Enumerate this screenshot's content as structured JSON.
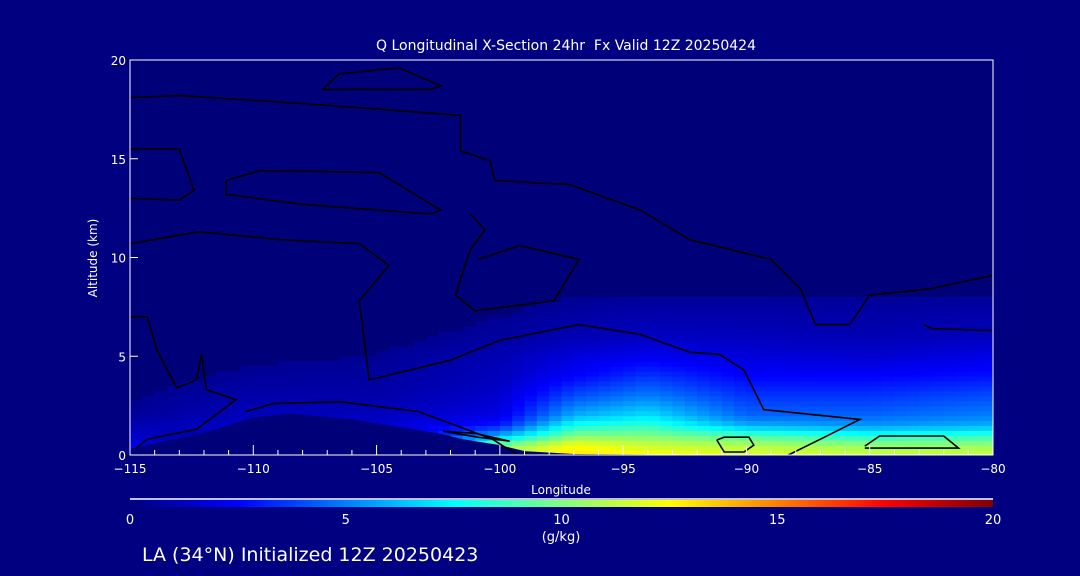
{
  "chart_data": {
    "type": "heatmap",
    "title": "Q Longitudinal X-Section 24hr  Fx Valid 12Z 20250424",
    "xlabel": "Longitude",
    "ylabel": "Altitude (km)",
    "xlim": [
      -115,
      -80
    ],
    "ylim": [
      0,
      20
    ],
    "xticks": [
      -115,
      -110,
      -105,
      -100,
      -95,
      -90,
      -85,
      -80
    ],
    "xtick_labels": [
      "−115",
      "−110",
      "−105",
      "−100",
      "−95",
      "−90",
      "−85",
      "−80"
    ],
    "yticks": [
      0,
      5,
      10,
      15,
      20
    ],
    "ytick_labels": [
      "0",
      "5",
      "10",
      "15",
      "20"
    ],
    "colorbar": {
      "label": "(g/kg)",
      "range": [
        0,
        20
      ],
      "ticks": [
        0,
        5,
        10,
        15,
        20
      ],
      "tick_labels": [
        "0",
        "5",
        "10",
        "15",
        "20"
      ],
      "stops": [
        [
          0,
          "#000080"
        ],
        [
          2.5,
          "#0000ff"
        ],
        [
          5,
          "#0080ff"
        ],
        [
          7.5,
          "#00ffff"
        ],
        [
          10,
          "#80ff80"
        ],
        [
          12.5,
          "#ffff00"
        ],
        [
          15,
          "#ff8000"
        ],
        [
          17.5,
          "#ff0000"
        ],
        [
          20,
          "#800000"
        ]
      ]
    },
    "grid": {
      "lon": [
        -115,
        -110,
        -105,
        -100,
        -97,
        -94,
        -90,
        -85,
        -80
      ],
      "alt": [
        0,
        0.5,
        1,
        1.5,
        2,
        3,
        4,
        5,
        6,
        8
      ],
      "q": [
        [
          3,
          2,
          1.5,
          1,
          0.5,
          0.3,
          0.2,
          0.1,
          0,
          0
        ],
        [
          0,
          0,
          0,
          1.5,
          1.2,
          0.8,
          0.5,
          0.3,
          0.1,
          0
        ],
        [
          0,
          0,
          0,
          1.5,
          1.2,
          0.8,
          0.6,
          0.4,
          0.2,
          0
        ],
        [
          11,
          10,
          6,
          3,
          2,
          1.5,
          1.2,
          1,
          0.6,
          0.2
        ],
        [
          13,
          12.5,
          10,
          8,
          6,
          4,
          2.5,
          1.8,
          1,
          0.4
        ],
        [
          12.5,
          11.5,
          10,
          8.5,
          7,
          5,
          3.5,
          2.2,
          1.3,
          0.5
        ],
        [
          12,
          11,
          9,
          6,
          4.5,
          3.5,
          2.5,
          1.8,
          1.2,
          0.5
        ],
        [
          11.5,
          10.5,
          8,
          5.5,
          4.5,
          3.5,
          2.5,
          1.6,
          1,
          0.5
        ],
        [
          11.5,
          10.5,
          8.5,
          6,
          5,
          4,
          2.8,
          2,
          1.2,
          0.5
        ]
      ]
    },
    "terrain": [
      [
        -115,
        0.3
      ],
      [
        -114,
        0.6
      ],
      [
        -112,
        1.1
      ],
      [
        -110,
        1.9
      ],
      [
        -108.5,
        2.1
      ],
      [
        -106,
        1.8
      ],
      [
        -104,
        1.4
      ],
      [
        -102.5,
        1.1
      ],
      [
        -101.5,
        0.8
      ],
      [
        -100,
        0.5
      ],
      [
        -99,
        0.2
      ],
      [
        -97,
        0.05
      ],
      [
        -90,
        0
      ],
      [
        -80,
        0
      ]
    ],
    "contours": [
      [
        [
          -107.2,
          18.5
        ],
        [
          -106.5,
          19.3
        ],
        [
          -104.1,
          19.6
        ],
        [
          -102.4,
          18.7
        ],
        [
          -102.8,
          18.5
        ],
        [
          -107.2,
          18.5
        ]
      ],
      [
        [
          -115,
          18.1
        ],
        [
          -113,
          18.2
        ],
        [
          -108.1,
          17.8
        ],
        [
          -101.6,
          17.2
        ],
        [
          -101.6,
          15.4
        ],
        [
          -100.4,
          14.9
        ],
        [
          -100.2,
          13.9
        ],
        [
          -97.2,
          13.7
        ],
        [
          -94.3,
          12.4
        ],
        [
          -92.3,
          10.9
        ],
        [
          -89,
          9.9
        ],
        [
          -87.8,
          8.4
        ],
        [
          -87.2,
          6.6
        ],
        [
          -85.8,
          6.6
        ],
        [
          -85,
          8.1
        ],
        [
          -82.6,
          8.4
        ],
        [
          -80,
          9.1
        ]
      ],
      [
        [
          -115,
          15.5
        ],
        [
          -113,
          15.5
        ],
        [
          -112.4,
          13.4
        ],
        [
          -113,
          12.9
        ],
        [
          -115,
          13.0
        ]
      ],
      [
        [
          -111.1,
          13.9
        ],
        [
          -109.7,
          14.4
        ],
        [
          -104.9,
          14.3
        ],
        [
          -102.4,
          12.4
        ],
        [
          -102.8,
          12.2
        ],
        [
          -108.1,
          12.7
        ],
        [
          -111.1,
          13.2
        ],
        [
          -111.1,
          13.9
        ]
      ],
      [
        [
          -115,
          10.7
        ],
        [
          -112.2,
          11.3
        ],
        [
          -108.9,
          10.9
        ],
        [
          -105.7,
          10.7
        ],
        [
          -104.5,
          9.6
        ],
        [
          -105.7,
          7.8
        ],
        [
          -105.3,
          3.8
        ],
        [
          -102,
          4.8
        ],
        [
          -100,
          5.8
        ],
        [
          -96.8,
          6.6
        ],
        [
          -94.3,
          6.1
        ],
        [
          -92.3,
          5.2
        ],
        [
          -91.1,
          5.1
        ],
        [
          -90.1,
          4.3
        ],
        [
          -89.3,
          2.3
        ],
        [
          -85.4,
          1.8
        ],
        [
          -87,
          0.8
        ],
        [
          -88.3,
          0
        ]
      ],
      [
        [
          -101.2,
          12.2
        ],
        [
          -100.6,
          11.4
        ],
        [
          -101.2,
          10.4
        ],
        [
          -101.8,
          8.1
        ],
        [
          -101,
          7.3
        ],
        [
          -97.8,
          7.8
        ],
        [
          -96.8,
          9.9
        ],
        [
          -99.2,
          10.6
        ],
        [
          -100.9,
          9.9
        ]
      ],
      [
        [
          -115,
          7.0
        ],
        [
          -114.3,
          7.0
        ],
        [
          -113.9,
          5.3
        ],
        [
          -113.1,
          3.4
        ],
        [
          -112.3,
          3.8
        ],
        [
          -112.1,
          5.1
        ],
        [
          -111.9,
          3.3
        ],
        [
          -110.7,
          2.8
        ],
        [
          -112.3,
          1.3
        ],
        [
          -114.3,
          0.8
        ],
        [
          -114.8,
          0.3
        ]
      ],
      [
        [
          -110.3,
          2.2
        ],
        [
          -109.2,
          2.6
        ],
        [
          -106.5,
          2.7
        ],
        [
          -103.3,
          2.2
        ],
        [
          -101.8,
          1.5
        ],
        [
          -100.3,
          0.8
        ],
        [
          -99.8,
          0.4
        ],
        [
          -99.3,
          0.05
        ]
      ],
      [
        [
          -91.2,
          0.76
        ],
        [
          -90.9,
          0.9
        ],
        [
          -89.9,
          0.9
        ],
        [
          -89.7,
          0.5
        ],
        [
          -90.1,
          0.15
        ],
        [
          -90.9,
          0.15
        ],
        [
          -91.2,
          0.76
        ]
      ],
      [
        [
          -85.2,
          0.45
        ],
        [
          -84.6,
          0.96
        ],
        [
          -82,
          0.96
        ],
        [
          -81.4,
          0.35
        ],
        [
          -85.2,
          0.35
        ]
      ],
      [
        [
          -82.8,
          6.6
        ],
        [
          -82.5,
          6.4
        ],
        [
          -80,
          6.3
        ]
      ],
      [
        [
          -102.3,
          1.2
        ],
        [
          -101.0,
          1.1
        ],
        [
          -99.6,
          0.7
        ],
        [
          -100.9,
          0.9
        ],
        [
          -102.3,
          1.2
        ]
      ]
    ]
  },
  "footer": {
    "text": "LA (34°N) Initialized 12Z 20250423"
  }
}
